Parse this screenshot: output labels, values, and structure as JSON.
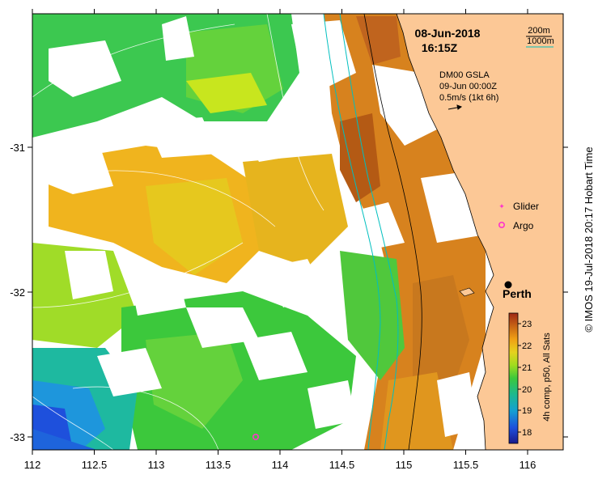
{
  "header": {
    "date": "08-Jun-2018",
    "time": "16:15Z"
  },
  "contours": {
    "label_shallow": "200m",
    "label_deep": "1000m",
    "color_shallow": "#000000",
    "color_deep": "#00bfbf"
  },
  "gsla": {
    "line1": "DM00 GSLA",
    "line2": "09-Jun 00:00Z",
    "line3": "0.5m/s (1kt 6h)"
  },
  "legend": {
    "glider": "Glider",
    "argo": "Argo",
    "glider_color": "#ff33cc",
    "argo_color": "#ff33cc"
  },
  "city": {
    "name": "Perth"
  },
  "colorbar": {
    "label": "4h comp, p50, All Sats",
    "min": 17.5,
    "max": 23.5,
    "ticks": [
      "18",
      "19",
      "20",
      "21",
      "22",
      "23"
    ]
  },
  "axes": {
    "x_ticks": [
      "112",
      "112.5",
      "113",
      "113.5",
      "114",
      "114.5",
      "115",
      "115.5",
      "116"
    ],
    "y_ticks": [
      "-31",
      "-32",
      "-33"
    ]
  },
  "credit": "© IMOS 19-Jul-2018 20:17 Hobart Time",
  "colors": {
    "land": "#fcc896",
    "sst_cold": "#1e64dc",
    "sst_warm": "#c86414"
  }
}
